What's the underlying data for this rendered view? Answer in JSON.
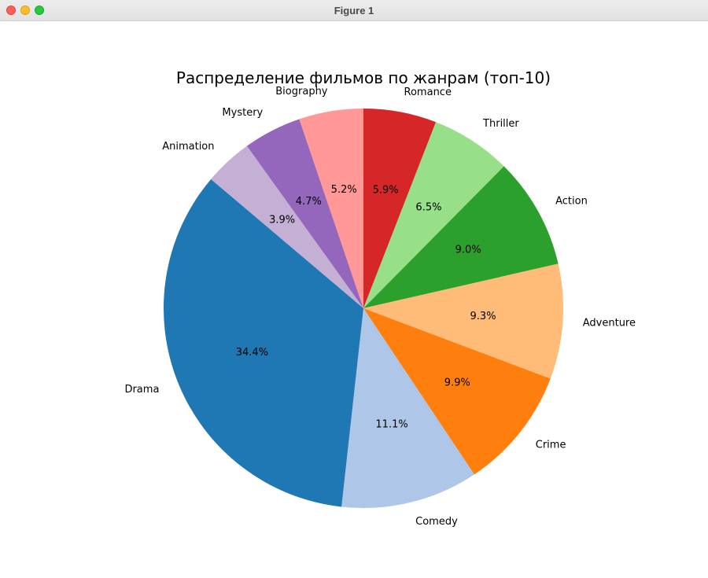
{
  "window": {
    "title": "Figure 1"
  },
  "chart_data": {
    "type": "pie",
    "title": "Распределение фильмов по жанрам (топ-10)",
    "start_angle_deg": 90,
    "direction": "clockwise",
    "slices": [
      {
        "label": "Romance",
        "value": 5.9,
        "pct_text": "5.9%",
        "color": "#d62728"
      },
      {
        "label": "Thriller",
        "value": 6.5,
        "pct_text": "6.5%",
        "color": "#98df8a"
      },
      {
        "label": "Action",
        "value": 9.0,
        "pct_text": "9.0%",
        "color": "#2ca02c"
      },
      {
        "label": "Adventure",
        "value": 9.3,
        "pct_text": "9.3%",
        "color": "#ffbb78"
      },
      {
        "label": "Crime",
        "value": 9.9,
        "pct_text": "9.9%",
        "color": "#ff7f0e"
      },
      {
        "label": "Comedy",
        "value": 11.1,
        "pct_text": "11.1%",
        "color": "#aec7e8"
      },
      {
        "label": "Drama",
        "value": 34.4,
        "pct_text": "34.4%",
        "color": "#1f77b4"
      },
      {
        "label": "Animation",
        "value": 3.9,
        "pct_text": "3.9%",
        "color": "#c5b0d5"
      },
      {
        "label": "Mystery",
        "value": 4.7,
        "pct_text": "4.7%",
        "color": "#9467bd"
      },
      {
        "label": "Biography",
        "value": 5.2,
        "pct_text": "5.2%",
        "color": "#ff9896"
      }
    ]
  }
}
